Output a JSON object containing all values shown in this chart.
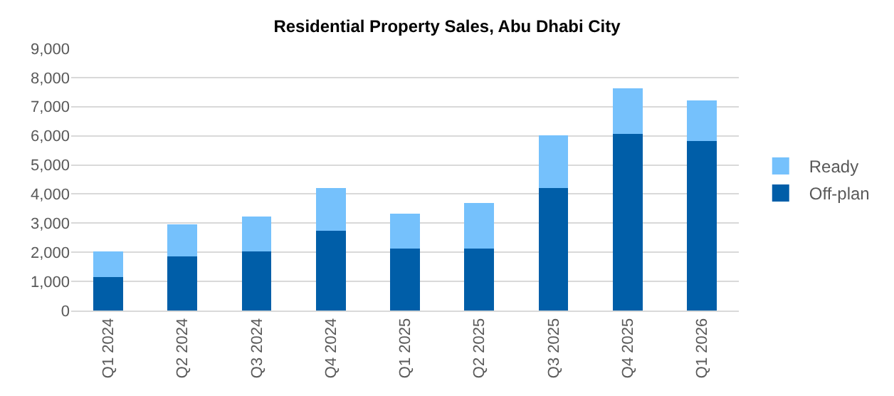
{
  "chart_data": {
    "type": "bar",
    "title": "Residential Property Sales, Abu Dhabi City",
    "stacked": true,
    "categories": [
      "Q1 2024",
      "Q2 2024",
      "Q3 2024",
      "Q4 2024",
      "Q1 2025",
      "Q2 2025",
      "Q3 2025",
      "Q4 2025",
      "Q1 2026"
    ],
    "series": [
      {
        "name": "Off-plan",
        "color": "#005ea8",
        "values": [
          1150,
          1870,
          2020,
          2750,
          2130,
          2130,
          4200,
          6070,
          5810
        ]
      },
      {
        "name": "Ready",
        "color": "#75c1fc",
        "values": [
          870,
          1090,
          1200,
          1450,
          1190,
          1560,
          1820,
          1560,
          1400
        ]
      }
    ],
    "ylim": [
      0,
      9000
    ],
    "yticks": [
      {
        "value": 0,
        "label": "0"
      },
      {
        "value": 1000,
        "label": "1,000"
      },
      {
        "value": 2000,
        "label": "2,000"
      },
      {
        "value": 3000,
        "label": "3,000"
      },
      {
        "value": 4000,
        "label": "4,000"
      },
      {
        "value": 5000,
        "label": "5,000"
      },
      {
        "value": 6000,
        "label": "6,000"
      },
      {
        "value": 7000,
        "label": "7,000"
      },
      {
        "value": 8000,
        "label": "8,000"
      },
      {
        "value": 9000,
        "label": "9,000"
      }
    ],
    "grid": "y",
    "legend": "right"
  }
}
